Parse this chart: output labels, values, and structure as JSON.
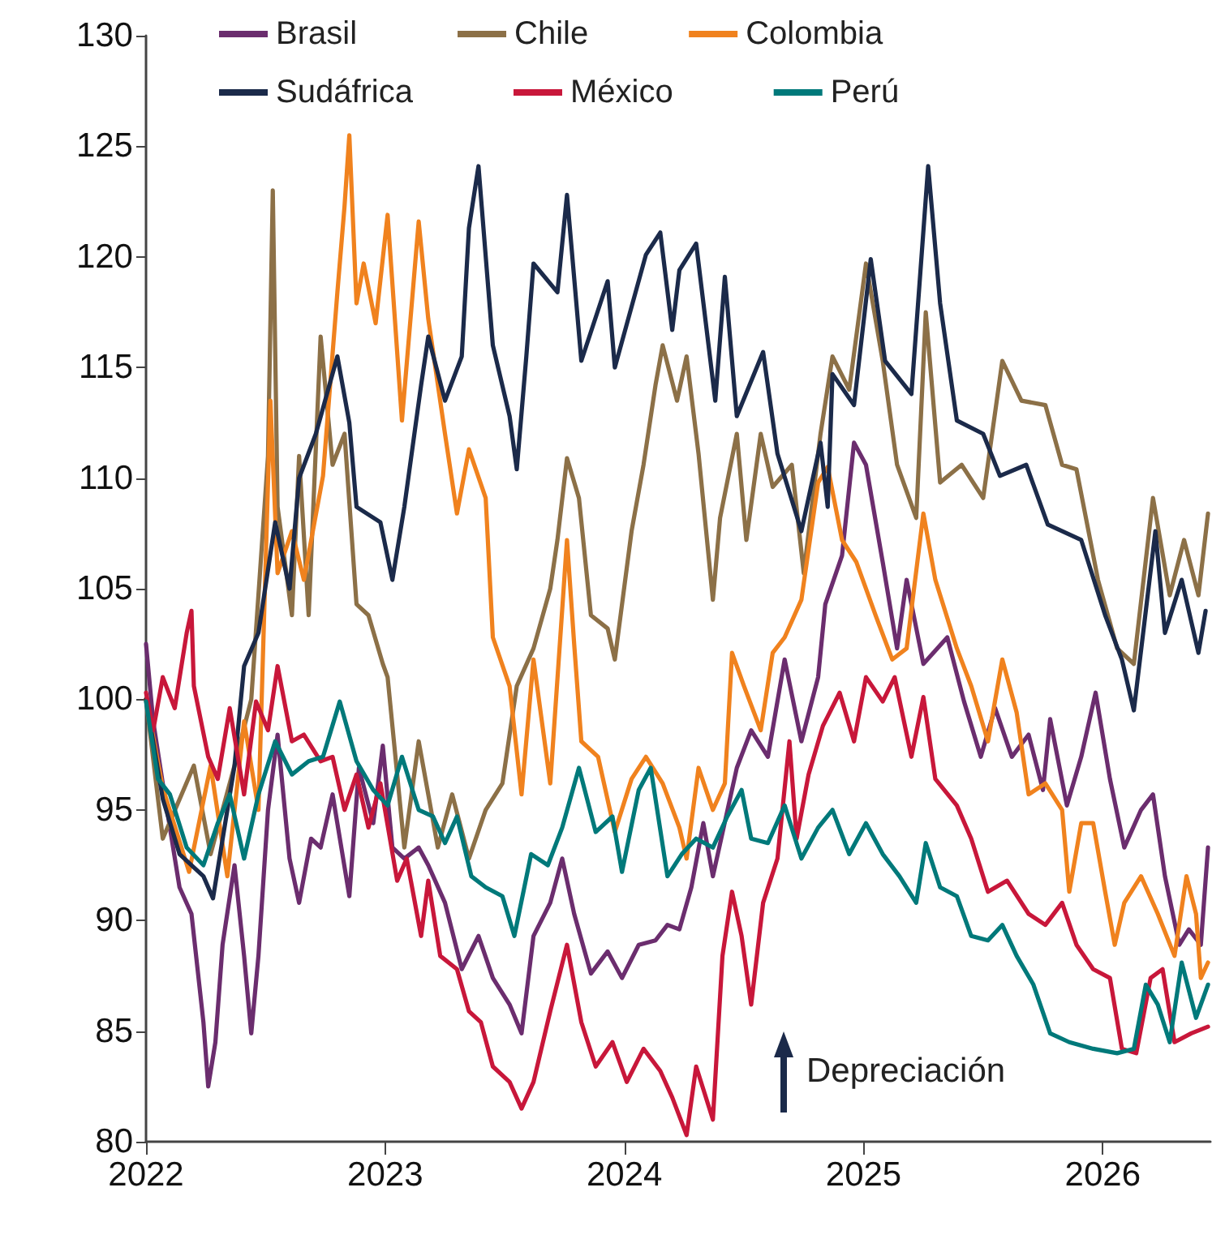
{
  "chart_data": {
    "type": "line",
    "xlim": [
      2022,
      2026.45
    ],
    "xticks": [
      2022,
      2023,
      2024,
      2025,
      2026
    ],
    "ylim": [
      80,
      130
    ],
    "yticks": [
      80,
      85,
      90,
      95,
      100,
      105,
      110,
      115,
      120,
      125,
      130
    ],
    "legend": "top",
    "marker": "none",
    "line_style": "solid",
    "annotations": [
      "Depreciación"
    ],
    "series": [
      {
        "name": "Brasil",
        "color": "#6b2d6e",
        "x": [
          2022.0,
          2022.03,
          2022.07,
          2022.14,
          2022.19,
          2022.24,
          2022.26,
          2022.29,
          2022.32,
          2022.37,
          2022.41,
          2022.44,
          2022.47,
          2022.51,
          2022.55,
          2022.6,
          2022.64,
          2022.69,
          2022.73,
          2022.78,
          2022.85,
          2022.89,
          2022.95,
          2022.99,
          2023.03,
          2023.08,
          2023.14,
          2023.18,
          2023.25,
          2023.32,
          2023.39,
          2023.45,
          2023.52,
          2023.57,
          2023.62,
          2023.69,
          2023.74,
          2023.79,
          2023.86,
          2023.93,
          2023.99,
          2024.06,
          2024.13,
          2024.18,
          2024.23,
          2024.28,
          2024.33,
          2024.37,
          2024.47,
          2024.53,
          2024.6,
          2024.67,
          2024.74,
          2024.81,
          2024.84,
          2024.91,
          2024.96,
          2025.01,
          2025.08,
          2025.14,
          2025.18,
          2025.25,
          2025.35,
          2025.42,
          2025.49,
          2025.55,
          2025.62,
          2025.69,
          2025.75,
          2025.78,
          2025.85,
          2025.91,
          2025.97,
          2026.03,
          2026.09,
          2026.16,
          2026.21,
          2026.26,
          2026.32,
          2026.36,
          2026.41,
          2026.44
        ],
        "values": [
          102.5,
          99,
          96.2,
          91.5,
          90.3,
          85.4,
          82.5,
          84.5,
          88.9,
          92.5,
          88.4,
          84.9,
          88.4,
          95,
          98.4,
          92.8,
          90.8,
          93.7,
          93.3,
          95.7,
          91.1,
          96.9,
          94.4,
          97.9,
          93.3,
          92.8,
          93.3,
          92.5,
          90.8,
          87.8,
          89.3,
          87.4,
          86.2,
          84.9,
          89.3,
          90.8,
          92.8,
          90.3,
          87.6,
          88.6,
          87.4,
          88.9,
          89.1,
          89.8,
          89.6,
          91.5,
          94.4,
          92,
          96.9,
          98.6,
          97.4,
          101.8,
          98.1,
          101,
          104.3,
          106.5,
          111.6,
          110.6,
          106.2,
          102.3,
          105.4,
          101.6,
          102.8,
          99.9,
          97.4,
          99.6,
          97.4,
          98.4,
          95.9,
          99.1,
          95.2,
          97.4,
          100.3,
          96.4,
          93.3,
          95,
          95.7,
          92,
          88.9,
          89.6,
          88.9,
          93.3
        ]
      },
      {
        "name": "Chile",
        "color": "#8c7047",
        "x": [
          2022.0,
          2022.07,
          2022.2,
          2022.27,
          2022.37,
          2022.44,
          2022.51,
          2022.53,
          2022.55,
          2022.61,
          2022.64,
          2022.68,
          2022.73,
          2022.78,
          2022.83,
          2022.88,
          2022.93,
          2022.99,
          2023.01,
          2023.08,
          2023.14,
          2023.22,
          2023.28,
          2023.35,
          2023.42,
          2023.49,
          2023.55,
          2023.62,
          2023.69,
          2023.72,
          2023.76,
          2023.81,
          2023.86,
          2023.93,
          2023.96,
          2024.03,
          2024.08,
          2024.13,
          2024.16,
          2024.22,
          2024.26,
          2024.31,
          2024.37,
          2024.4,
          2024.47,
          2024.51,
          2024.57,
          2024.62,
          2024.7,
          2024.75,
          2024.82,
          2024.87,
          2024.94,
          2025.01,
          2025.08,
          2025.14,
          2025.22,
          2025.26,
          2025.32,
          2025.41,
          2025.5,
          2025.58,
          2025.66,
          2025.76,
          2025.83,
          2025.89,
          2025.98,
          2026.06,
          2026.13,
          2026.21,
          2026.28,
          2026.34,
          2026.4,
          2026.44
        ],
        "values": [
          100,
          93.7,
          97,
          93,
          97,
          100,
          111,
          123,
          108.7,
          103.8,
          111,
          103.8,
          116.4,
          110.6,
          112,
          104.3,
          103.8,
          101.6,
          101,
          93.3,
          98.1,
          93.3,
          95.7,
          92.8,
          95,
          96.2,
          100.6,
          102.3,
          105,
          107.2,
          110.9,
          109.1,
          103.8,
          103.2,
          101.8,
          107.6,
          110.6,
          114.2,
          116,
          113.5,
          115.5,
          111.1,
          104.5,
          108.2,
          112,
          107.2,
          112,
          109.6,
          110.6,
          105.7,
          112,
          115.5,
          114,
          119.7,
          115.3,
          110.6,
          108.2,
          117.5,
          109.8,
          110.6,
          109.1,
          115.3,
          113.5,
          113.3,
          110.6,
          110.4,
          105.4,
          102.3,
          101.6,
          109.1,
          104.7,
          107.2,
          104.7,
          108.4
        ]
      },
      {
        "name": "Colombia",
        "color": "#f0821e",
        "x": [
          2022.0,
          2022.07,
          2022.18,
          2022.27,
          2022.34,
          2022.41,
          2022.47,
          2022.52,
          2022.55,
          2022.61,
          2022.66,
          2022.74,
          2022.8,
          2022.83,
          2022.85,
          2022.88,
          2022.91,
          2022.96,
          2023.01,
          2023.07,
          2023.14,
          2023.18,
          2023.25,
          2023.3,
          2023.35,
          2023.42,
          2023.45,
          2023.52,
          2023.57,
          2023.62,
          2023.69,
          2023.76,
          2023.79,
          2023.82,
          2023.89,
          2023.96,
          2024.03,
          2024.09,
          2024.16,
          2024.23,
          2024.26,
          2024.31,
          2024.37,
          2024.42,
          2024.45,
          2024.5,
          2024.57,
          2024.62,
          2024.67,
          2024.74,
          2024.81,
          2024.85,
          2024.91,
          2024.97,
          2025.05,
          2025.12,
          2025.18,
          2025.25,
          2025.3,
          2025.39,
          2025.45,
          2025.52,
          2025.58,
          2025.64,
          2025.69,
          2025.76,
          2025.83,
          2025.86,
          2025.91,
          2025.96,
          2026.01,
          2026.05,
          2026.09,
          2026.16,
          2026.23,
          2026.3,
          2026.35,
          2026.39,
          2026.41,
          2026.44
        ],
        "values": [
          100,
          96,
          92.2,
          97,
          92,
          99,
          95,
          113.5,
          105.7,
          107.6,
          105.4,
          110.1,
          118.4,
          122.3,
          125.5,
          117.9,
          119.7,
          117,
          121.9,
          112.6,
          121.6,
          117.2,
          112,
          108.4,
          111.3,
          109.1,
          102.8,
          100.6,
          95.7,
          101.8,
          96.2,
          107.2,
          102.5,
          98.1,
          97.4,
          94,
          96.4,
          97.4,
          96.2,
          94.2,
          92.8,
          96.9,
          95,
          96.2,
          102.1,
          100.6,
          98.6,
          102.1,
          102.8,
          104.5,
          109.8,
          110.5,
          107.2,
          106.2,
          103.8,
          101.8,
          102.3,
          108.4,
          105.4,
          102.3,
          100.6,
          98.1,
          101.8,
          99.4,
          95.7,
          96.2,
          95,
          91.3,
          94.4,
          94.4,
          91.3,
          88.9,
          90.8,
          92,
          90.3,
          88.4,
          92,
          90.3,
          87.4,
          88.1
        ]
      },
      {
        "name": "Sudáfrica",
        "color": "#1b2a4a",
        "x": [
          2022.0,
          2022.07,
          2022.14,
          2022.24,
          2022.28,
          2022.37,
          2022.41,
          2022.47,
          2022.54,
          2022.6,
          2022.64,
          2022.71,
          2022.8,
          2022.85,
          2022.88,
          2022.98,
          2023.03,
          2023.08,
          2023.15,
          2023.18,
          2023.25,
          2023.32,
          2023.35,
          2023.39,
          2023.45,
          2023.52,
          2023.55,
          2023.59,
          2023.62,
          2023.72,
          2023.76,
          2023.82,
          2023.93,
          2023.96,
          2024.09,
          2024.15,
          2024.2,
          2024.23,
          2024.3,
          2024.38,
          2024.42,
          2024.47,
          2024.58,
          2024.64,
          2024.74,
          2024.82,
          2024.85,
          2024.87,
          2024.96,
          2025.03,
          2025.09,
          2025.2,
          2025.27,
          2025.32,
          2025.39,
          2025.5,
          2025.57,
          2025.68,
          2025.77,
          2025.91,
          2026.01,
          2026.08,
          2026.13,
          2026.22,
          2026.26,
          2026.33,
          2026.4,
          2026.43
        ],
        "values": [
          100,
          95.5,
          93,
          92,
          91,
          97,
          101.5,
          103,
          108,
          105,
          110,
          112,
          115.5,
          112.5,
          108.7,
          108,
          105.4,
          108.7,
          114.2,
          116.4,
          113.5,
          115.5,
          121.3,
          124.1,
          116,
          112.8,
          110.4,
          115.5,
          119.7,
          118.4,
          122.8,
          115.3,
          118.9,
          115,
          120.1,
          121.1,
          116.7,
          119.4,
          120.6,
          113.5,
          119.1,
          112.8,
          115.7,
          111.1,
          107.6,
          111.6,
          108.7,
          114.7,
          113.3,
          119.9,
          115.3,
          113.8,
          124.1,
          117.9,
          112.6,
          112,
          110.1,
          110.6,
          107.9,
          107.2,
          103.8,
          101.8,
          99.5,
          107.6,
          103,
          105.4,
          102.1,
          104
        ]
      },
      {
        "name": "México",
        "color": "#c8173a",
        "x": [
          2022.0,
          2022.03,
          2022.07,
          2022.12,
          2022.17,
          2022.19,
          2022.2,
          2022.26,
          2022.3,
          2022.35,
          2022.41,
          2022.46,
          2022.51,
          2022.55,
          2022.61,
          2022.66,
          2022.73,
          2022.78,
          2022.83,
          2022.88,
          2022.93,
          2022.98,
          2023.05,
          2023.09,
          2023.15,
          2023.18,
          2023.23,
          2023.3,
          2023.35,
          2023.4,
          2023.45,
          2023.52,
          2023.57,
          2023.62,
          2023.69,
          2023.76,
          2023.82,
          2023.88,
          2023.95,
          2024.01,
          2024.08,
          2024.15,
          2024.2,
          2024.26,
          2024.3,
          2024.37,
          2024.41,
          2024.45,
          2024.49,
          2024.53,
          2024.58,
          2024.64,
          2024.69,
          2024.72,
          2024.77,
          2024.83,
          2024.9,
          2024.96,
          2025.01,
          2025.08,
          2025.13,
          2025.2,
          2025.25,
          2025.3,
          2025.39,
          2025.45,
          2025.52,
          2025.6,
          2025.69,
          2025.76,
          2025.83,
          2025.89,
          2025.96,
          2026.03,
          2026.08,
          2026.14,
          2026.2,
          2026.25,
          2026.3,
          2026.37,
          2026.44
        ],
        "values": [
          100.3,
          98.6,
          101,
          99.6,
          103,
          104,
          100.6,
          97.4,
          96.4,
          99.6,
          95.7,
          99.9,
          98.6,
          101.5,
          98.1,
          98.4,
          97.2,
          97.4,
          95,
          96.6,
          94.2,
          96.2,
          91.8,
          92.8,
          89.3,
          91.8,
          88.4,
          87.8,
          85.9,
          85.4,
          83.4,
          82.7,
          81.5,
          82.7,
          85.9,
          88.9,
          85.4,
          83.4,
          84.5,
          82.7,
          84.2,
          83.2,
          82,
          80.3,
          83.4,
          81,
          88.4,
          91.3,
          89.3,
          86.2,
          90.8,
          92.8,
          98.1,
          93.7,
          96.6,
          98.8,
          100.3,
          98.1,
          101,
          99.9,
          101,
          97.4,
          100.1,
          96.4,
          95.2,
          93.7,
          91.3,
          91.8,
          90.3,
          89.8,
          90.8,
          88.9,
          87.8,
          87.4,
          84.2,
          84,
          87.4,
          87.8,
          84.5,
          84.9,
          85.2
        ]
      },
      {
        "name": "Perú",
        "color": "#00797a",
        "x": [
          2022.0,
          2022.05,
          2022.1,
          2022.17,
          2022.24,
          2022.3,
          2022.35,
          2022.41,
          2022.47,
          2022.54,
          2022.61,
          2022.68,
          2022.74,
          2022.81,
          2022.88,
          2022.95,
          2023.01,
          2023.07,
          2023.14,
          2023.2,
          2023.25,
          2023.3,
          2023.36,
          2023.42,
          2023.49,
          2023.54,
          2023.61,
          2023.68,
          2023.74,
          2023.81,
          2023.88,
          2023.95,
          2023.99,
          2024.06,
          2024.11,
          2024.18,
          2024.24,
          2024.3,
          2024.37,
          2024.43,
          2024.49,
          2024.53,
          2024.6,
          2024.67,
          2024.74,
          2024.81,
          2024.87,
          2024.94,
          2025.01,
          2025.08,
          2025.15,
          2025.22,
          2025.26,
          2025.32,
          2025.39,
          2025.45,
          2025.52,
          2025.58,
          2025.64,
          2025.71,
          2025.78,
          2025.86,
          2025.96,
          2026.06,
          2026.13,
          2026.18,
          2026.23,
          2026.28,
          2026.33,
          2026.39,
          2026.44
        ],
        "values": [
          99.9,
          96.4,
          95.7,
          93.3,
          92.5,
          94.4,
          95.7,
          92.8,
          95.7,
          98.1,
          96.6,
          97.2,
          97.4,
          99.9,
          97.2,
          95.9,
          95.2,
          97.4,
          95,
          94.7,
          93.5,
          94.7,
          92,
          91.5,
          91.1,
          89.3,
          93,
          92.5,
          94.2,
          96.9,
          94,
          94.7,
          92.2,
          95.9,
          96.9,
          92,
          93,
          93.7,
          93.3,
          94.7,
          95.9,
          93.7,
          93.5,
          95.2,
          92.8,
          94.2,
          95,
          93,
          94.4,
          93,
          92,
          90.8,
          93.5,
          91.5,
          91.1,
          89.3,
          89.1,
          89.8,
          88.4,
          87.1,
          84.9,
          84.5,
          84.2,
          84,
          84.2,
          87.1,
          86.2,
          84.5,
          88.1,
          85.6,
          87.1
        ]
      }
    ]
  }
}
